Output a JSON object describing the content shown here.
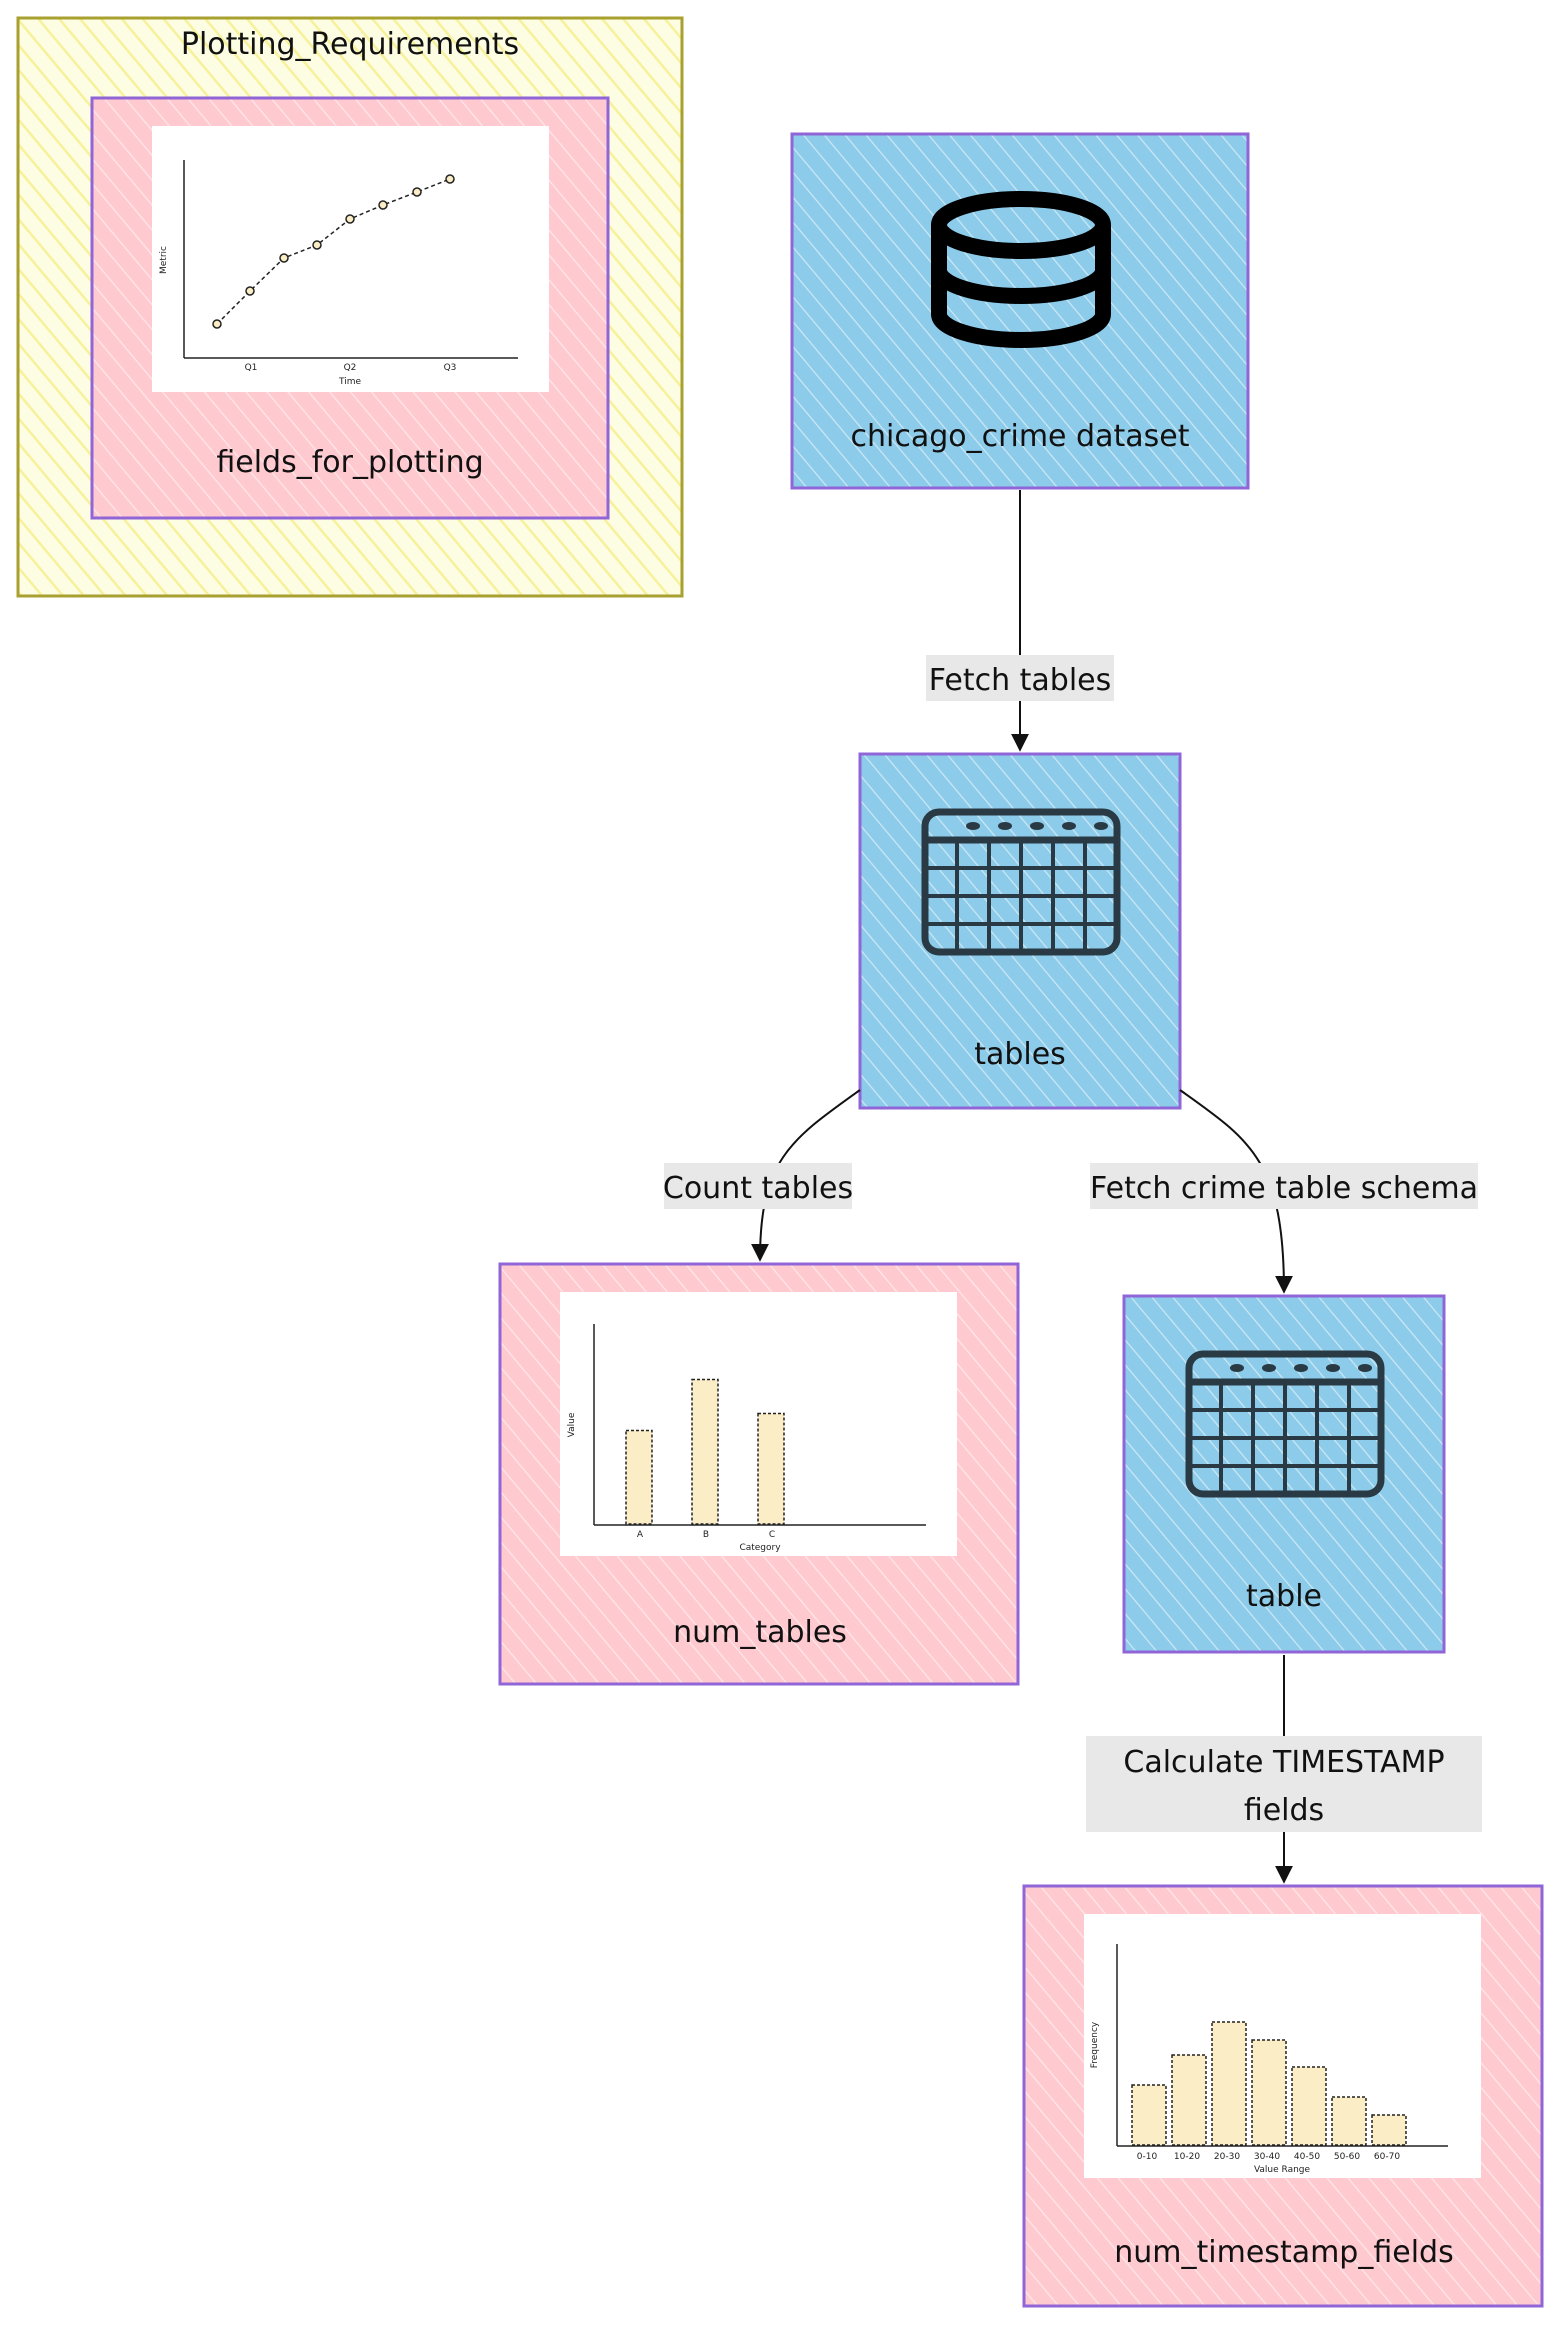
{
  "groups": {
    "plotting_requirements": {
      "title": "Plotting_Requirements"
    }
  },
  "nodes": {
    "fields_for_plotting": {
      "label": "fields_for_plotting",
      "icon": "line-chart-icon"
    },
    "chicago_crime": {
      "label": "chicago_crime dataset",
      "icon": "database-icon"
    },
    "tables": {
      "label": "tables",
      "icon": "table-icon"
    },
    "num_tables": {
      "label": "num_tables",
      "icon": "bar-chart-icon"
    },
    "table": {
      "label": "table",
      "icon": "table-icon"
    },
    "num_timestamp_fields": {
      "label": "num_timestamp_fields",
      "icon": "histogram-icon"
    }
  },
  "edges": {
    "fetch_tables": {
      "label": "Fetch tables"
    },
    "count_tables": {
      "label": "Count tables"
    },
    "fetch_schema": {
      "label": "Fetch crime table schema"
    },
    "calc_timestamp": {
      "label_line1": "Calculate TIMESTAMP",
      "label_line2": "fields"
    }
  },
  "thumbnails": {
    "line_chart": {
      "x_ticks": [
        "Q1",
        "Q2",
        "Q3"
      ],
      "xlabel": "Time",
      "ylabel": "Metric"
    },
    "bar_chart": {
      "x_ticks": [
        "A",
        "B",
        "C"
      ],
      "xlabel": "Category",
      "ylabel": "Value",
      "values": [
        55,
        85,
        65
      ]
    },
    "histogram": {
      "x_ticks": [
        "0-10",
        "10-20",
        "20-30",
        "30-40",
        "40-50",
        "50-60",
        "60-70"
      ],
      "xlabel": "Value Range",
      "ylabel": "Frequency",
      "values": [
        40,
        60,
        82,
        70,
        52,
        32,
        20
      ]
    }
  },
  "colors": {
    "group_fill": "#fdfbd6",
    "group_border": "#a8a030",
    "pink_fill": "#ffc9d0",
    "blue_fill": "#8ccbe9",
    "node_border": "#9065d8",
    "edge_label_bg": "#e8e8e8",
    "bar_fill": "#fbedc5"
  }
}
